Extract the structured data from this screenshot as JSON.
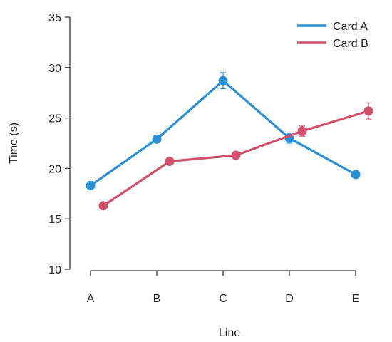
{
  "chart_data": {
    "type": "line",
    "categories": [
      "A",
      "B",
      "C",
      "D",
      "E"
    ],
    "xlabel": "Line",
    "ylabel": "Time (s)",
    "ylim": [
      10,
      35
    ],
    "yticks": [
      10,
      15,
      20,
      25,
      30,
      35
    ],
    "grid": false,
    "legend_position": "top-right",
    "error_bars": true,
    "series": [
      {
        "name": "Card A",
        "color": "#2a8fd4",
        "values": [
          18.3,
          22.9,
          28.7,
          23.0,
          19.4
        ],
        "errors": [
          0.4,
          0.3,
          0.8,
          0.5,
          0.3
        ]
      },
      {
        "name": "Card B",
        "color": "#d14f6b",
        "values": [
          16.3,
          20.7,
          21.3,
          23.7,
          25.7
        ],
        "errors": [
          0.2,
          0.3,
          0.3,
          0.5,
          0.8
        ]
      }
    ]
  }
}
